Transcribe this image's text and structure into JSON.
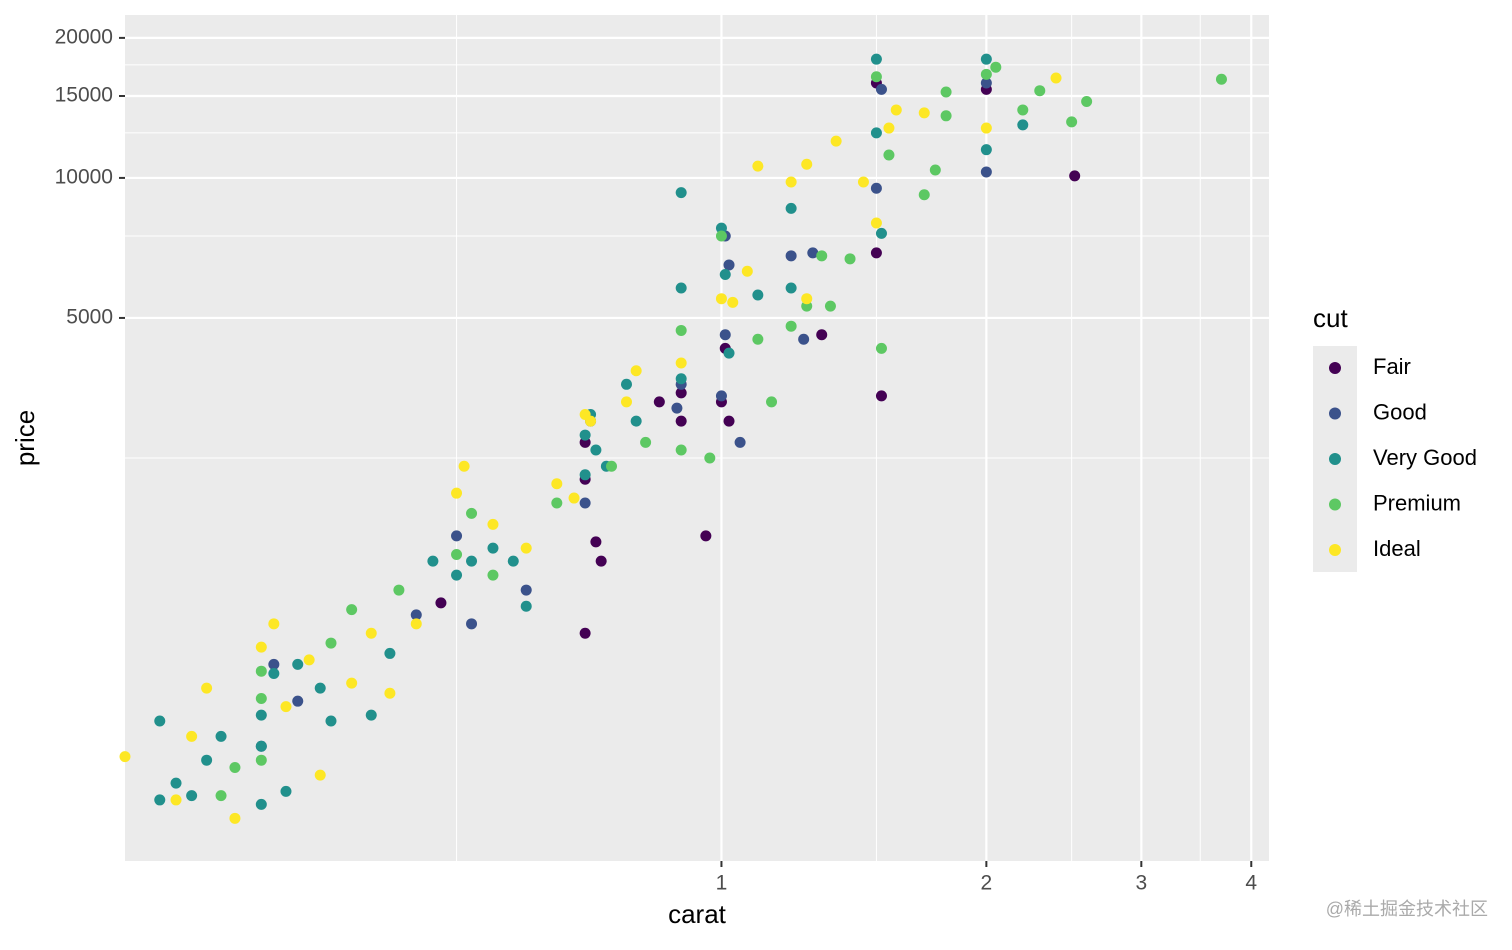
{
  "chart_data": {
    "type": "scatter",
    "x_label": "carat",
    "y_label": "price",
    "x_log": true,
    "y_log": true,
    "xlim": [
      0.21,
      4.19
    ],
    "ylim": [
      340,
      22400
    ],
    "xticks": [
      1,
      2,
      3,
      4
    ],
    "yticks": [
      5000,
      10000,
      15000,
      20000
    ],
    "grid": true,
    "legend_title": "cut",
    "legend_position": "right",
    "series": [
      {
        "name": "Fair",
        "color": "#440154",
        "x": [
          0.48,
          0.7,
          0.7,
          0.72,
          0.9,
          0.96,
          1.0,
          1.02,
          1.01,
          1.5,
          1.52,
          1.5,
          2.0,
          2.52,
          1.3,
          0.7,
          0.85,
          0.73,
          0.9
        ],
        "values": [
          1220,
          1050,
          2250,
          1650,
          3000,
          1700,
          3300,
          3000,
          4300,
          6900,
          3400,
          16000,
          15500,
          10100,
          4600,
          2700,
          3300,
          1500,
          3450
        ]
      },
      {
        "name": "Good",
        "color": "#3b528b",
        "x": [
          0.3,
          0.33,
          0.45,
          0.52,
          0.6,
          0.7,
          0.71,
          0.9,
          1.0,
          1.01,
          1.02,
          1.05,
          1.2,
          1.27,
          1.24,
          1.5,
          1.52,
          2.0,
          2.0,
          0.89,
          0.31,
          0.5,
          1.01
        ],
        "values": [
          600,
          750,
          1150,
          1100,
          1300,
          2000,
          3000,
          3600,
          3400,
          4600,
          6500,
          2700,
          6800,
          6900,
          4500,
          9500,
          15500,
          10300,
          16000,
          3200,
          900,
          1700,
          7500
        ]
      },
      {
        "name": "Very Good",
        "color": "#21908c",
        "x": [
          0.23,
          0.23,
          0.24,
          0.25,
          0.26,
          0.27,
          0.3,
          0.3,
          0.3,
          0.31,
          0.32,
          0.35,
          0.36,
          0.4,
          0.42,
          0.5,
          0.52,
          0.55,
          0.58,
          0.7,
          0.7,
          0.71,
          0.72,
          0.78,
          0.8,
          0.9,
          0.9,
          0.9,
          1.0,
          1.01,
          1.02,
          1.1,
          1.2,
          1.2,
          1.5,
          1.5,
          1.52,
          2.0,
          2.0,
          2.2,
          0.33,
          0.47,
          0.74,
          0.6
        ],
        "values": [
          460,
          680,
          500,
          470,
          560,
          630,
          450,
          600,
          700,
          860,
          480,
          800,
          680,
          700,
          950,
          1400,
          1500,
          1600,
          1500,
          2300,
          2800,
          3100,
          2600,
          3600,
          3000,
          3700,
          5800,
          9300,
          7800,
          6200,
          4200,
          5600,
          8600,
          5800,
          18000,
          12500,
          7600,
          18000,
          11500,
          13000,
          900,
          1500,
          2400,
          1200
        ]
      },
      {
        "name": "Premium",
        "color": "#5dc863",
        "x": [
          0.27,
          0.28,
          0.3,
          0.3,
          0.3,
          0.36,
          0.38,
          0.43,
          0.5,
          0.52,
          0.55,
          0.65,
          0.75,
          0.82,
          0.9,
          0.9,
          0.97,
          1.0,
          1.1,
          1.14,
          1.2,
          1.25,
          1.3,
          1.4,
          1.5,
          1.52,
          1.55,
          1.7,
          1.8,
          1.8,
          2.0,
          2.05,
          2.2,
          2.3,
          2.5,
          2.6,
          3.7,
          1.75,
          1.33
        ],
        "values": [
          470,
          540,
          560,
          760,
          870,
          1000,
          1180,
          1300,
          1550,
          1900,
          1400,
          2000,
          2400,
          2700,
          4700,
          2600,
          2500,
          7500,
          4500,
          3300,
          4800,
          5300,
          6800,
          6700,
          16500,
          4300,
          11200,
          9200,
          13600,
          15300,
          16700,
          17300,
          14000,
          15400,
          13200,
          14600,
          16300,
          10400,
          5300
        ]
      },
      {
        "name": "Ideal",
        "color": "#fde725",
        "x": [
          0.21,
          0.24,
          0.25,
          0.26,
          0.28,
          0.3,
          0.31,
          0.32,
          0.34,
          0.35,
          0.38,
          0.4,
          0.42,
          0.45,
          0.5,
          0.51,
          0.55,
          0.6,
          0.65,
          0.68,
          0.7,
          0.71,
          0.8,
          0.9,
          1.0,
          1.03,
          1.07,
          1.1,
          1.2,
          1.25,
          1.35,
          1.45,
          1.5,
          1.55,
          1.58,
          1.7,
          2.0,
          2.4,
          1.25,
          0.78
        ],
        "values": [
          570,
          460,
          630,
          800,
          420,
          980,
          1100,
          730,
          920,
          520,
          820,
          1050,
          780,
          1100,
          2100,
          2400,
          1800,
          1600,
          2200,
          2050,
          3100,
          3000,
          3850,
          4000,
          5500,
          5400,
          6300,
          10600,
          9800,
          10700,
          12000,
          9800,
          8000,
          12800,
          14000,
          13800,
          12800,
          16400,
          5500,
          3300
        ]
      }
    ]
  },
  "watermark": "@稀土掘金技术社区"
}
